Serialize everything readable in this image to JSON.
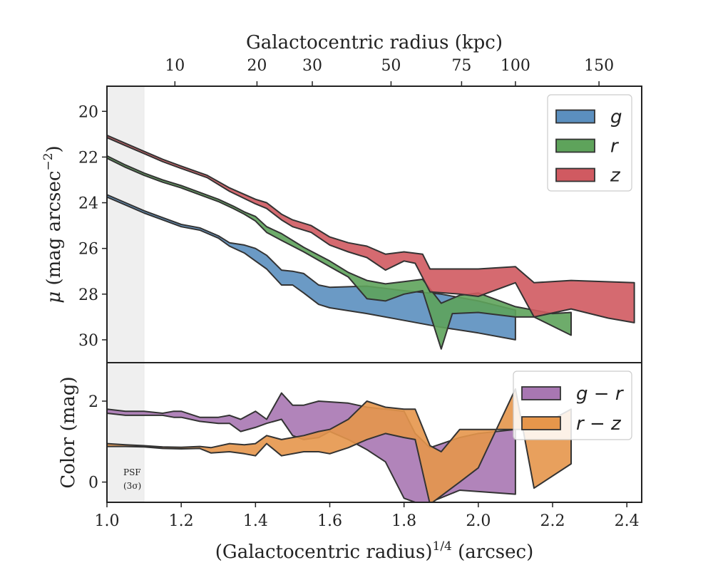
{
  "chart_data": {
    "type": "area",
    "top_axis": {
      "label": "Galactocentric radius (kpc)",
      "ticks": [
        {
          "label": "10",
          "at": 1.183
        },
        {
          "label": "20",
          "at": 1.404
        },
        {
          "label": "30",
          "at": 1.553
        },
        {
          "label": "50",
          "at": 1.765
        },
        {
          "label": "75",
          "at": 1.955
        },
        {
          "label": "100",
          "at": 2.1
        },
        {
          "label": "150",
          "at": 2.325
        }
      ]
    },
    "xlabel_parts": {
      "base": "(Galactocentric radius)",
      "sup": "1/4",
      "unit": " (arcsec)"
    },
    "xlim": [
      1.0,
      2.44
    ],
    "x_ticks": [
      "1.0",
      "1.2",
      "1.4",
      "1.6",
      "1.8",
      "2.0",
      "2.2",
      "2.4"
    ],
    "psf": {
      "x_end": 1.1,
      "label_line1": "PSF",
      "label_line2": "(3σ)"
    },
    "top_panel": {
      "ylabel_parts": {
        "mu": "μ",
        "text": " (mag arcsec",
        "sup": "−2",
        "close": ")"
      },
      "ylim": [
        31.0,
        18.9
      ],
      "y_ticks": [
        "20",
        "22",
        "24",
        "26",
        "28",
        "30"
      ],
      "series": [
        {
          "name": "g",
          "color": "#5b8fbf",
          "upper": [
            [
              1.0,
              23.65
            ],
            [
              1.05,
              24.0
            ],
            [
              1.1,
              24.35
            ],
            [
              1.15,
              24.65
            ],
            [
              1.2,
              24.95
            ],
            [
              1.25,
              25.1
            ],
            [
              1.3,
              25.45
            ],
            [
              1.33,
              25.75
            ],
            [
              1.37,
              25.85
            ],
            [
              1.4,
              26.0
            ],
            [
              1.43,
              26.3
            ],
            [
              1.47,
              26.95
            ],
            [
              1.5,
              27.0
            ],
            [
              1.53,
              27.1
            ],
            [
              1.57,
              27.6
            ],
            [
              1.6,
              27.7
            ],
            [
              1.7,
              27.65
            ],
            [
              1.8,
              27.85
            ],
            [
              1.9,
              28.0
            ],
            [
              2.0,
              28.3
            ],
            [
              2.1,
              28.7
            ]
          ],
          "lower": [
            [
              1.0,
              23.75
            ],
            [
              1.05,
              24.1
            ],
            [
              1.1,
              24.45
            ],
            [
              1.15,
              24.75
            ],
            [
              1.2,
              25.05
            ],
            [
              1.25,
              25.2
            ],
            [
              1.3,
              25.55
            ],
            [
              1.33,
              25.9
            ],
            [
              1.37,
              26.2
            ],
            [
              1.4,
              26.55
            ],
            [
              1.43,
              26.9
            ],
            [
              1.47,
              27.6
            ],
            [
              1.5,
              27.6
            ],
            [
              1.53,
              27.95
            ],
            [
              1.57,
              28.45
            ],
            [
              1.6,
              28.6
            ],
            [
              1.7,
              28.85
            ],
            [
              1.8,
              29.15
            ],
            [
              1.9,
              29.45
            ],
            [
              2.0,
              29.7
            ],
            [
              2.1,
              30.0
            ]
          ]
        },
        {
          "name": "r",
          "color": "#5ea35b",
          "upper": [
            [
              1.0,
              21.95
            ],
            [
              1.05,
              22.35
            ],
            [
              1.1,
              22.7
            ],
            [
              1.15,
              23.0
            ],
            [
              1.2,
              23.25
            ],
            [
              1.25,
              23.55
            ],
            [
              1.3,
              23.85
            ],
            [
              1.34,
              24.15
            ],
            [
              1.37,
              24.4
            ],
            [
              1.4,
              24.6
            ],
            [
              1.43,
              25.05
            ],
            [
              1.47,
              25.35
            ],
            [
              1.53,
              25.95
            ],
            [
              1.6,
              26.55
            ],
            [
              1.65,
              27.05
            ],
            [
              1.7,
              27.4
            ],
            [
              1.75,
              27.55
            ],
            [
              1.8,
              27.45
            ],
            [
              1.85,
              27.35
            ],
            [
              1.9,
              28.4
            ],
            [
              1.95,
              28.05
            ],
            [
              2.0,
              27.95
            ],
            [
              2.1,
              28.55
            ],
            [
              2.2,
              28.85
            ],
            [
              2.25,
              28.8
            ]
          ],
          "lower": [
            [
              1.0,
              22.05
            ],
            [
              1.05,
              22.45
            ],
            [
              1.1,
              22.8
            ],
            [
              1.15,
              23.1
            ],
            [
              1.2,
              23.35
            ],
            [
              1.25,
              23.65
            ],
            [
              1.3,
              23.95
            ],
            [
              1.34,
              24.25
            ],
            [
              1.37,
              24.5
            ],
            [
              1.4,
              24.8
            ],
            [
              1.43,
              25.3
            ],
            [
              1.47,
              25.65
            ],
            [
              1.53,
              26.15
            ],
            [
              1.6,
              26.8
            ],
            [
              1.65,
              27.25
            ],
            [
              1.7,
              28.2
            ],
            [
              1.75,
              28.3
            ],
            [
              1.8,
              28.0
            ],
            [
              1.85,
              27.85
            ],
            [
              1.9,
              30.4
            ],
            [
              1.93,
              28.85
            ],
            [
              2.0,
              28.8
            ],
            [
              2.1,
              29.0
            ],
            [
              2.15,
              29.0
            ],
            [
              2.25,
              29.8
            ]
          ]
        },
        {
          "name": "z",
          "color": "#d05a61",
          "upper": [
            [
              1.0,
              21.05
            ],
            [
              1.05,
              21.4
            ],
            [
              1.1,
              21.75
            ],
            [
              1.15,
              22.1
            ],
            [
              1.2,
              22.4
            ],
            [
              1.27,
              22.8
            ],
            [
              1.33,
              23.35
            ],
            [
              1.4,
              23.85
            ],
            [
              1.43,
              24.0
            ],
            [
              1.47,
              24.5
            ],
            [
              1.5,
              24.75
            ],
            [
              1.55,
              25.0
            ],
            [
              1.6,
              25.5
            ],
            [
              1.65,
              25.75
            ],
            [
              1.7,
              25.9
            ],
            [
              1.75,
              26.25
            ],
            [
              1.8,
              26.15
            ],
            [
              1.85,
              26.25
            ],
            [
              1.87,
              26.9
            ],
            [
              2.0,
              26.9
            ],
            [
              2.1,
              26.8
            ],
            [
              2.15,
              27.5
            ],
            [
              2.25,
              27.4
            ],
            [
              2.42,
              27.5
            ]
          ],
          "lower": [
            [
              1.0,
              21.15
            ],
            [
              1.05,
              21.5
            ],
            [
              1.1,
              21.85
            ],
            [
              1.15,
              22.2
            ],
            [
              1.2,
              22.5
            ],
            [
              1.27,
              22.9
            ],
            [
              1.33,
              23.5
            ],
            [
              1.4,
              24.05
            ],
            [
              1.43,
              24.25
            ],
            [
              1.47,
              24.75
            ],
            [
              1.5,
              25.05
            ],
            [
              1.55,
              25.3
            ],
            [
              1.6,
              25.85
            ],
            [
              1.65,
              26.15
            ],
            [
              1.7,
              26.4
            ],
            [
              1.75,
              26.95
            ],
            [
              1.8,
              26.55
            ],
            [
              1.83,
              26.65
            ],
            [
              1.87,
              27.9
            ],
            [
              1.95,
              28.0
            ],
            [
              2.0,
              28.1
            ],
            [
              2.1,
              27.5
            ],
            [
              2.15,
              29.0
            ],
            [
              2.25,
              28.65
            ],
            [
              2.35,
              29.05
            ],
            [
              2.42,
              29.25
            ]
          ]
        }
      ]
    },
    "bottom_panel": {
      "ylabel": "Color (mag)",
      "ylim": [
        -0.5,
        2.95
      ],
      "y_ticks": [
        "0",
        "2"
      ],
      "y_tick_values": [
        0,
        2
      ],
      "series": [
        {
          "name": "g − r",
          "color": "#a877b2",
          "upper": [
            [
              1.0,
              1.8
            ],
            [
              1.05,
              1.75
            ],
            [
              1.1,
              1.75
            ],
            [
              1.15,
              1.7
            ],
            [
              1.18,
              1.75
            ],
            [
              1.2,
              1.75
            ],
            [
              1.25,
              1.6
            ],
            [
              1.3,
              1.6
            ],
            [
              1.33,
              1.65
            ],
            [
              1.36,
              1.55
            ],
            [
              1.4,
              1.75
            ],
            [
              1.43,
              1.55
            ],
            [
              1.47,
              2.2
            ],
            [
              1.5,
              1.9
            ],
            [
              1.53,
              1.9
            ],
            [
              1.57,
              2.0
            ],
            [
              1.65,
              1.95
            ],
            [
              1.7,
              1.85
            ],
            [
              1.75,
              1.8
            ],
            [
              1.8,
              1.75
            ],
            [
              1.83,
              1.2
            ],
            [
              1.87,
              0.85
            ],
            [
              1.95,
              1.1
            ],
            [
              2.0,
              1.2
            ],
            [
              2.1,
              1.3
            ]
          ],
          "lower": [
            [
              1.0,
              1.7
            ],
            [
              1.05,
              1.65
            ],
            [
              1.1,
              1.65
            ],
            [
              1.15,
              1.65
            ],
            [
              1.18,
              1.6
            ],
            [
              1.2,
              1.6
            ],
            [
              1.25,
              1.5
            ],
            [
              1.3,
              1.45
            ],
            [
              1.33,
              1.45
            ],
            [
              1.36,
              1.25
            ],
            [
              1.4,
              1.35
            ],
            [
              1.43,
              1.45
            ],
            [
              1.47,
              1.55
            ],
            [
              1.5,
              1.15
            ],
            [
              1.53,
              1.05
            ],
            [
              1.57,
              1.1
            ],
            [
              1.6,
              1.25
            ],
            [
              1.65,
              1.05
            ],
            [
              1.7,
              0.8
            ],
            [
              1.75,
              0.5
            ],
            [
              1.8,
              -0.4
            ],
            [
              1.83,
              -0.5
            ],
            [
              1.87,
              -0.5
            ],
            [
              1.95,
              -0.2
            ],
            [
              2.1,
              -0.3
            ]
          ]
        },
        {
          "name": "r − z",
          "color": "#e6964b",
          "upper": [
            [
              1.0,
              0.95
            ],
            [
              1.05,
              0.92
            ],
            [
              1.1,
              0.9
            ],
            [
              1.15,
              0.87
            ],
            [
              1.2,
              0.86
            ],
            [
              1.25,
              0.88
            ],
            [
              1.28,
              0.85
            ],
            [
              1.33,
              0.95
            ],
            [
              1.37,
              0.92
            ],
            [
              1.4,
              0.95
            ],
            [
              1.43,
              1.15
            ],
            [
              1.47,
              1.05
            ],
            [
              1.53,
              1.15
            ],
            [
              1.57,
              1.25
            ],
            [
              1.6,
              1.3
            ],
            [
              1.65,
              1.55
            ],
            [
              1.7,
              2.0
            ],
            [
              1.75,
              1.85
            ],
            [
              1.8,
              1.8
            ],
            [
              1.83,
              1.8
            ],
            [
              1.87,
              0.9
            ],
            [
              1.9,
              0.75
            ],
            [
              1.95,
              1.3
            ],
            [
              2.0,
              1.3
            ],
            [
              2.1,
              1.3
            ],
            [
              2.15,
              1.3
            ],
            [
              2.25,
              1.8
            ]
          ],
          "lower": [
            [
              1.0,
              0.88
            ],
            [
              1.05,
              0.88
            ],
            [
              1.1,
              0.87
            ],
            [
              1.15,
              0.83
            ],
            [
              1.2,
              0.82
            ],
            [
              1.25,
              0.83
            ],
            [
              1.28,
              0.72
            ],
            [
              1.33,
              0.75
            ],
            [
              1.37,
              0.7
            ],
            [
              1.4,
              0.65
            ],
            [
              1.43,
              0.95
            ],
            [
              1.47,
              0.65
            ],
            [
              1.53,
              0.75
            ],
            [
              1.57,
              0.75
            ],
            [
              1.6,
              0.7
            ],
            [
              1.65,
              0.85
            ],
            [
              1.7,
              1.05
            ],
            [
              1.75,
              1.2
            ],
            [
              1.8,
              1.1
            ],
            [
              1.83,
              1.05
            ],
            [
              1.87,
              -0.55
            ],
            [
              1.95,
              0.0
            ],
            [
              2.0,
              0.35
            ],
            [
              2.1,
              2.3
            ],
            [
              2.15,
              -0.15
            ],
            [
              2.25,
              0.45
            ]
          ]
        }
      ]
    }
  }
}
